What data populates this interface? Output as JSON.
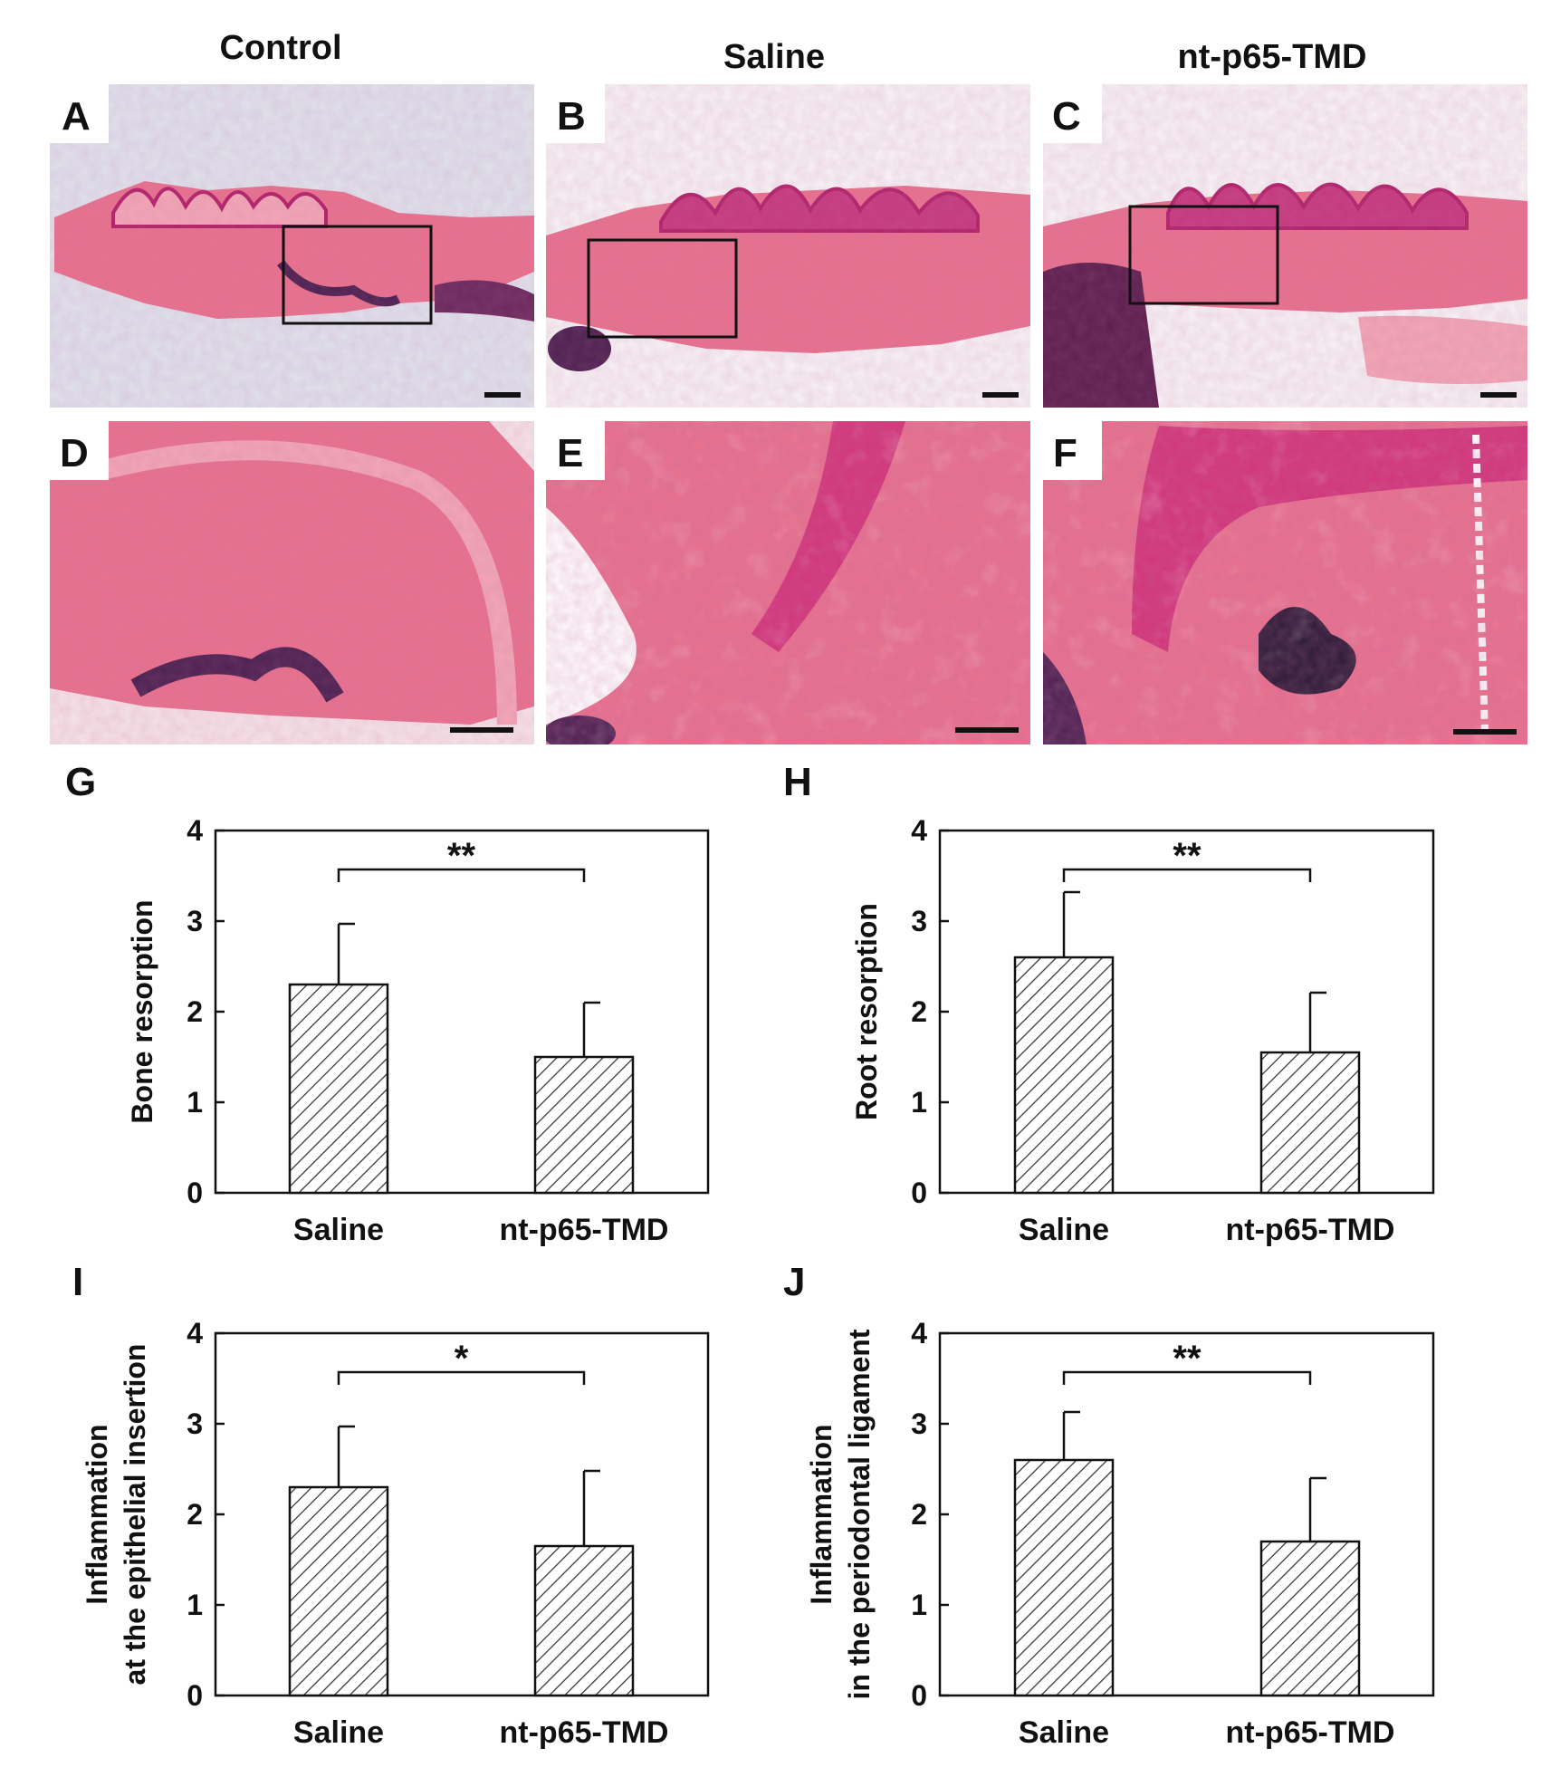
{
  "column_headers": [
    "Control",
    "Saline",
    "nt-p65-TMD"
  ],
  "micrograph_panels": [
    "A",
    "B",
    "C",
    "D",
    "E",
    "F"
  ],
  "colors": {
    "background_control": "#dfe3ec",
    "tissue_pink": "#e8728e",
    "tissue_light": "#f2a7b6",
    "enamel_magenta": "#b0226a",
    "dark_purple": "#4a2150",
    "bar_hatch": "#333333"
  },
  "chart_data": [
    {
      "panel": "G",
      "type": "bar",
      "categories": [
        "Saline",
        "nt-p65-TMD"
      ],
      "values": [
        2.3,
        1.5
      ],
      "errors": [
        0.67,
        0.6
      ],
      "ylabel": [
        "Bone resorption"
      ],
      "ylim": [
        0,
        4
      ],
      "yticks": [
        "0",
        "1",
        "2",
        "3",
        "4"
      ],
      "significance": "**"
    },
    {
      "panel": "H",
      "type": "bar",
      "categories": [
        "Saline",
        "nt-p65-TMD"
      ],
      "values": [
        2.6,
        1.55
      ],
      "errors": [
        0.72,
        0.66
      ],
      "ylabel": [
        "Root resorption"
      ],
      "ylim": [
        0,
        4
      ],
      "yticks": [
        "0",
        "1",
        "2",
        "3",
        "4"
      ],
      "significance": "**"
    },
    {
      "panel": "I",
      "type": "bar",
      "categories": [
        "Saline",
        "nt-p65-TMD"
      ],
      "values": [
        2.3,
        1.65
      ],
      "errors": [
        0.67,
        0.83
      ],
      "ylabel": [
        "Inflammation",
        "at the epithelial insertion"
      ],
      "ylim": [
        0,
        4
      ],
      "yticks": [
        "0",
        "1",
        "2",
        "3",
        "4"
      ],
      "significance": "*"
    },
    {
      "panel": "J",
      "type": "bar",
      "categories": [
        "Saline",
        "nt-p65-TMD"
      ],
      "values": [
        2.6,
        1.7
      ],
      "errors": [
        0.53,
        0.7
      ],
      "ylabel": [
        "Inflammation",
        "in the periodontal ligament"
      ],
      "ylim": [
        0,
        4
      ],
      "yticks": [
        "0",
        "1",
        "2",
        "3",
        "4"
      ],
      "significance": "**"
    }
  ]
}
